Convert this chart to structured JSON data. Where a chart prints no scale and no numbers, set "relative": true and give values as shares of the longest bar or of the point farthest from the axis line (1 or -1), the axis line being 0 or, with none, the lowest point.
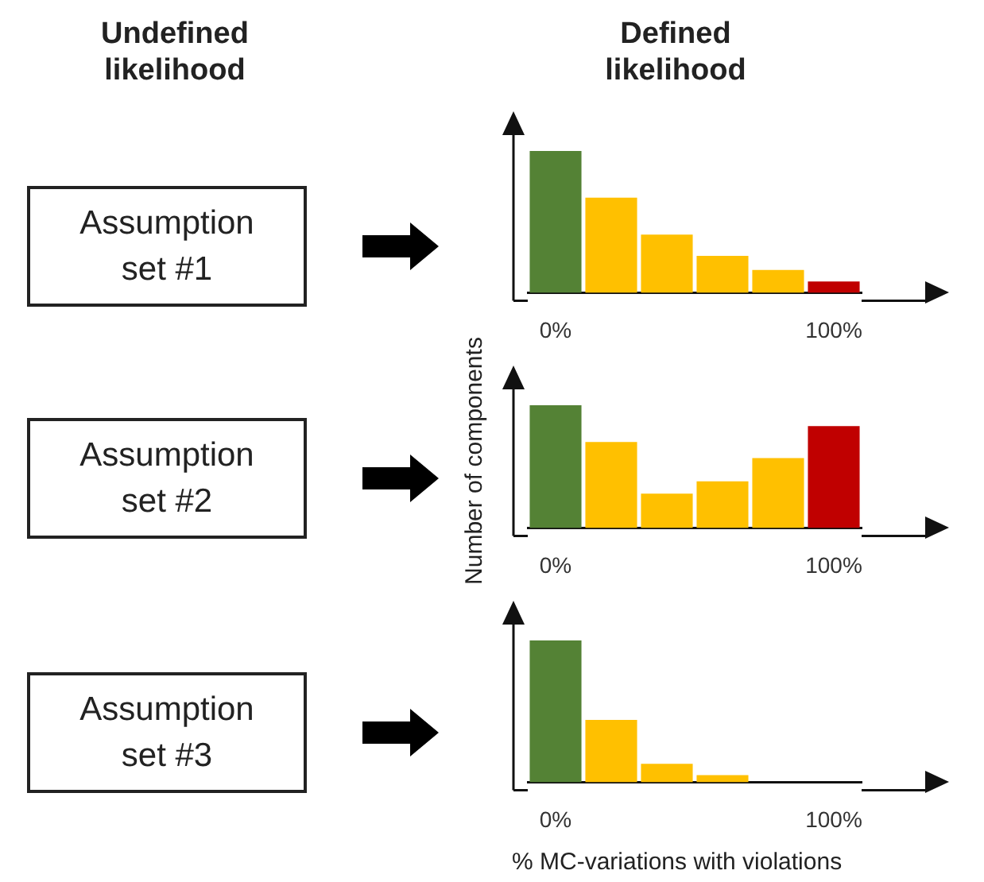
{
  "chart_data": [
    {
      "type": "bar",
      "title": "Defined likelihood",
      "relative": true,
      "categories": [
        "0%",
        null,
        null,
        null,
        null,
        "100%"
      ],
      "values": [
        1,
        0.67,
        0.41,
        0.26,
        0.16,
        0.08
      ],
      "colors": [
        "#548235",
        "#ffc000",
        "#ffc000",
        "#ffc000",
        "#ffc000",
        "#c00000"
      ],
      "legend": false,
      "annotations": [
        "Undefined likelihood",
        "Assumption set #1"
      ]
    },
    {
      "type": "bar",
      "ylabel": "Number of components",
      "relative": true,
      "categories": [
        "0%",
        null,
        null,
        null,
        null,
        "100%"
      ],
      "values": [
        1,
        0.7,
        0.28,
        0.38,
        0.57,
        0.83
      ],
      "colors": [
        "#548235",
        "#ffc000",
        "#ffc000",
        "#ffc000",
        "#ffc000",
        "#c00000"
      ],
      "legend": false,
      "annotations": [
        "Assumption set #2"
      ]
    },
    {
      "type": "bar",
      "xlabel": "% MC-variations with violations",
      "relative": true,
      "categories": [
        "0%",
        null,
        null,
        null,
        null,
        "100%"
      ],
      "values": [
        1,
        0.44,
        0.13,
        0.05,
        0,
        0
      ],
      "colors": [
        "#548235",
        "#ffc000",
        "#ffc000",
        "#ffc000",
        "#ffc000",
        "#ffc000"
      ],
      "legend": false,
      "annotations": [
        "Assumption set #3"
      ]
    }
  ]
}
